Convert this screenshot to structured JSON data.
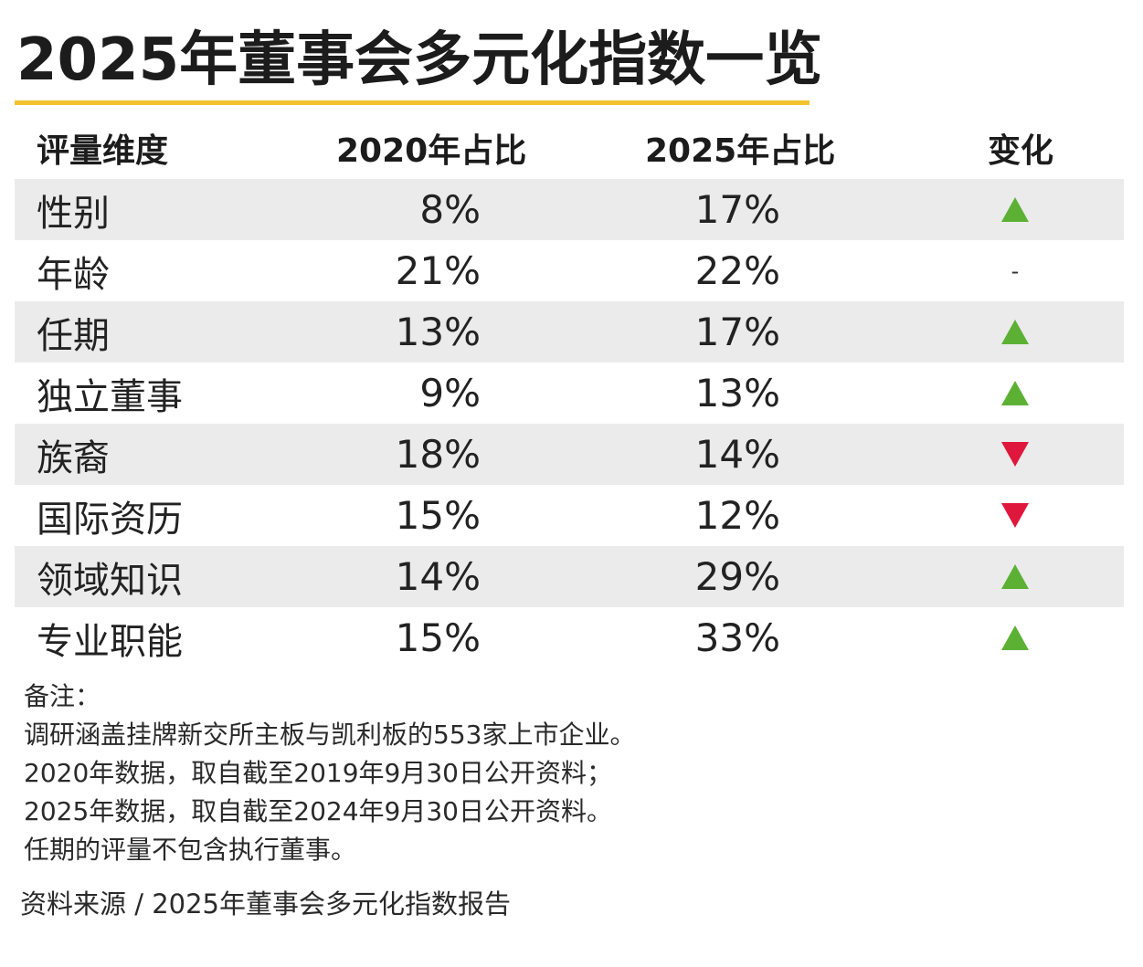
{
  "title": "2025年董事会多元化指数一览",
  "accent_color": "#f2c230",
  "up_color": "#5cb135",
  "down_color": "#e0173c",
  "table": {
    "headers": {
      "dimension": "评量维度",
      "y2020": "2020年占比",
      "y2025": "2025年占比",
      "change": "变化"
    },
    "rows": [
      {
        "dimension": "性别",
        "y2020": "8%",
        "y2025": "17%",
        "change": "up"
      },
      {
        "dimension": "年龄",
        "y2020": "21%",
        "y2025": "22%",
        "change": "-"
      },
      {
        "dimension": "任期",
        "y2020": "13%",
        "y2025": "17%",
        "change": "up"
      },
      {
        "dimension": "独立董事",
        "y2020": "9%",
        "y2025": "13%",
        "change": "up"
      },
      {
        "dimension": "族裔",
        "y2020": "18%",
        "y2025": "14%",
        "change": "down"
      },
      {
        "dimension": "国际资历",
        "y2020": "15%",
        "y2025": "12%",
        "change": "down"
      },
      {
        "dimension": "领域知识",
        "y2020": "14%",
        "y2025": "29%",
        "change": "up"
      },
      {
        "dimension": "专业职能",
        "y2020": "15%",
        "y2025": "33%",
        "change": "up"
      }
    ]
  },
  "notes": [
    "备注：",
    "调研涵盖挂牌新交所主板与凯利板的553家上市企业。",
    "2020年数据，取自截至2019年9月30日公开资料；",
    "2025年数据，取自截至2024年9月30日公开资料。",
    "任期的评量不包含执行董事。"
  ],
  "source": "资料来源 / 2025年董事会多元化指数报告"
}
